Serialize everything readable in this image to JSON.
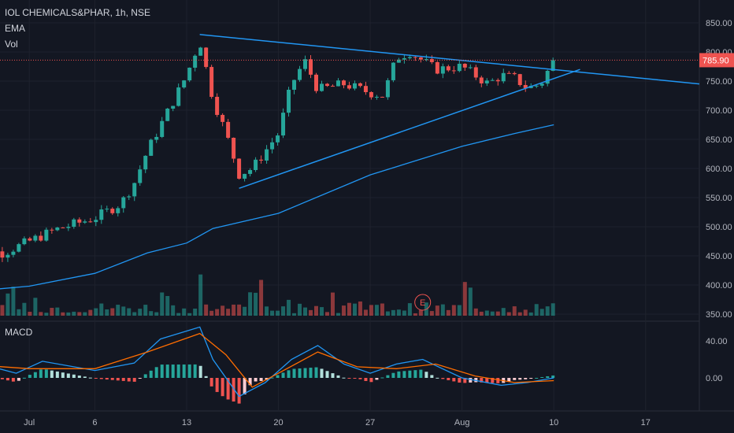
{
  "header": {
    "title": "IOL CHEMICALS&PHAR, 1h, NSE",
    "indicator_1": "EMA",
    "indicator_2": "Vol"
  },
  "macd_panel": {
    "label": "MACD"
  },
  "price_badge": {
    "value": "785.90"
  },
  "colors": {
    "background": "#131722",
    "bull": "#26a69a",
    "bear": "#ef5350",
    "line": "#2196f3",
    "macd": "#2196f3",
    "signal": "#ff6d00",
    "badge": "#ef5350",
    "grid": "#1e222d"
  },
  "chart_data": [
    {
      "type": "candlestick",
      "title": "IOL CHEMICALS&PHAR, 1h, NSE",
      "ylim": [
        350,
        850
      ],
      "y_ticks": [
        "850.00",
        "800.00",
        "750.00",
        "700.00",
        "650.00",
        "600.00",
        "550.00",
        "500.00",
        "450.00",
        "400.00",
        "350.00"
      ],
      "x_ticks": [
        "Jul",
        "6",
        "13",
        "20",
        "27",
        "Aug",
        "10",
        "17"
      ],
      "x_tick_dates": [
        "2020-07-01",
        "2020-07-06",
        "2020-07-13",
        "2020-07-20",
        "2020-07-27",
        "2020-08-03",
        "2020-08-10",
        "2020-08-17"
      ],
      "last_price": 785.9,
      "ema": [
        {
          "date": "2020-06-26",
          "value": 388
        },
        {
          "date": "2020-07-01",
          "value": 398
        },
        {
          "date": "2020-07-06",
          "value": 420
        },
        {
          "date": "2020-07-10",
          "value": 455
        },
        {
          "date": "2020-07-13",
          "value": 472
        },
        {
          "date": "2020-07-15",
          "value": 497
        },
        {
          "date": "2020-07-20",
          "value": 523
        },
        {
          "date": "2020-07-27",
          "value": 589
        },
        {
          "date": "2020-08-03",
          "value": 638
        },
        {
          "date": "2020-08-07",
          "value": 660
        },
        {
          "date": "2020-08-10",
          "value": 675
        }
      ],
      "trendlines": [
        {
          "name": "upper",
          "start": {
            "date": "2020-07-14",
            "price": 830
          },
          "end": {
            "date": "2020-08-18",
            "price": 752
          }
        },
        {
          "name": "lower",
          "start": {
            "date": "2020-07-17",
            "price": 566
          },
          "end": {
            "date": "2020-08-12",
            "price": 770
          }
        }
      ],
      "price_path": [
        {
          "date": "2020-06-26",
          "price": 465
        },
        {
          "date": "2020-06-29",
          "price": 455
        },
        {
          "date": "2020-07-01",
          "price": 475
        },
        {
          "date": "2020-07-03",
          "price": 495
        },
        {
          "date": "2020-07-06",
          "price": 515
        },
        {
          "date": "2020-07-08",
          "price": 540
        },
        {
          "date": "2020-07-09",
          "price": 575
        },
        {
          "date": "2020-07-10",
          "price": 630
        },
        {
          "date": "2020-07-13",
          "price": 760
        },
        {
          "date": "2020-07-14",
          "price": 820
        },
        {
          "date": "2020-07-15",
          "price": 720
        },
        {
          "date": "2020-07-16",
          "price": 660
        },
        {
          "date": "2020-07-17",
          "price": 590
        },
        {
          "date": "2020-07-18",
          "price": 600
        },
        {
          "date": "2020-07-20",
          "price": 660
        },
        {
          "date": "2020-07-21",
          "price": 745
        },
        {
          "date": "2020-07-22",
          "price": 785
        },
        {
          "date": "2020-07-23",
          "price": 735
        },
        {
          "date": "2020-07-25",
          "price": 745
        },
        {
          "date": "2020-07-27",
          "price": 730
        },
        {
          "date": "2020-07-28",
          "price": 725
        },
        {
          "date": "2020-07-29",
          "price": 790
        },
        {
          "date": "2020-07-30",
          "price": 800
        },
        {
          "date": "2020-08-01",
          "price": 770
        },
        {
          "date": "2020-08-03",
          "price": 775
        },
        {
          "date": "2020-08-04",
          "price": 760
        },
        {
          "date": "2020-08-05",
          "price": 745
        },
        {
          "date": "2020-08-06",
          "price": 760
        },
        {
          "date": "2020-08-07",
          "price": 755
        },
        {
          "date": "2020-08-08",
          "price": 738
        },
        {
          "date": "2020-08-09",
          "price": 745
        },
        {
          "date": "2020-08-10",
          "price": 786
        }
      ],
      "earnings_marker": {
        "label": "E",
        "date": "2020-07-31"
      }
    },
    {
      "type": "bar",
      "title": "MACD",
      "ylim": [
        -70,
        70
      ],
      "y_ticks": [
        "40.00",
        "0.00"
      ],
      "macd_line": [
        {
          "date": "2020-06-26",
          "value": 20
        },
        {
          "date": "2020-06-30",
          "value": 5
        },
        {
          "date": "2020-07-02",
          "value": 18
        },
        {
          "date": "2020-07-06",
          "value": 8
        },
        {
          "date": "2020-07-09",
          "value": 16
        },
        {
          "date": "2020-07-11",
          "value": 42
        },
        {
          "date": "2020-07-14",
          "value": 55
        },
        {
          "date": "2020-07-15",
          "value": 20
        },
        {
          "date": "2020-07-17",
          "value": -20
        },
        {
          "date": "2020-07-19",
          "value": -5
        },
        {
          "date": "2020-07-21",
          "value": 20
        },
        {
          "date": "2020-07-23",
          "value": 35
        },
        {
          "date": "2020-07-25",
          "value": 15
        },
        {
          "date": "2020-07-27",
          "value": 5
        },
        {
          "date": "2020-07-29",
          "value": 15
        },
        {
          "date": "2020-07-31",
          "value": 20
        },
        {
          "date": "2020-08-03",
          "value": 0
        },
        {
          "date": "2020-08-06",
          "value": -8
        },
        {
          "date": "2020-08-08",
          "value": -5
        },
        {
          "date": "2020-08-10",
          "value": 0
        }
      ],
      "signal_line": [
        {
          "date": "2020-06-26",
          "value": 15
        },
        {
          "date": "2020-07-01",
          "value": 10
        },
        {
          "date": "2020-07-06",
          "value": 10
        },
        {
          "date": "2020-07-10",
          "value": 28
        },
        {
          "date": "2020-07-14",
          "value": 48
        },
        {
          "date": "2020-07-16",
          "value": 25
        },
        {
          "date": "2020-07-18",
          "value": -10
        },
        {
          "date": "2020-07-20",
          "value": 5
        },
        {
          "date": "2020-07-23",
          "value": 28
        },
        {
          "date": "2020-07-26",
          "value": 12
        },
        {
          "date": "2020-07-29",
          "value": 10
        },
        {
          "date": "2020-08-01",
          "value": 15
        },
        {
          "date": "2020-08-04",
          "value": 2
        },
        {
          "date": "2020-08-07",
          "value": -5
        },
        {
          "date": "2020-08-10",
          "value": -3
        }
      ]
    }
  ]
}
